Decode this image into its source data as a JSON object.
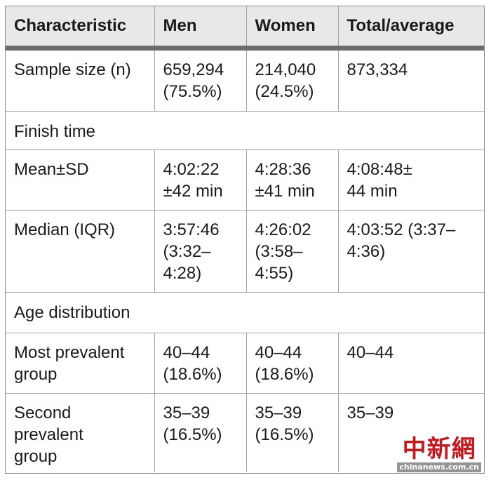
{
  "table": {
    "headers": [
      "Characteristic",
      "Men",
      "Women",
      "Total/average"
    ],
    "rows": {
      "sample_size": {
        "label": "Sample size (n)",
        "men": [
          "659,294",
          "(75.5%)"
        ],
        "women": [
          "214,040",
          "(24.5%)"
        ],
        "total": [
          "873,334"
        ]
      },
      "finish_time": {
        "label": "Finish time"
      },
      "mean_sd": {
        "label": "Mean±SD",
        "men": [
          "4:02:22",
          "±42 min"
        ],
        "women": [
          "4:28:36",
          "±41 min"
        ],
        "total": [
          "4:08:48±",
          "44 min"
        ]
      },
      "median_iqr": {
        "label": "Median (IQR)",
        "men": [
          "3:57:46",
          "(3:32–",
          "4:28)"
        ],
        "women": [
          "4:26:02",
          "(3:58–",
          "4:55)"
        ],
        "total": [
          "4:03:52 (3:37–",
          "4:36)"
        ]
      },
      "age_distribution": {
        "label": "Age distribution"
      },
      "most_prevalent": {
        "label": [
          "Most prevalent",
          "group"
        ],
        "men": [
          "40–44",
          "(18.6%)"
        ],
        "women": [
          "40–44",
          "(18.6%)"
        ],
        "total": [
          "40–44"
        ]
      },
      "second_prevalent": {
        "label": [
          "Second",
          "prevalent",
          "group"
        ],
        "men": [
          "35–39",
          "(16.5%)"
        ],
        "women": [
          "35–39",
          "(16.5%)"
        ],
        "total": [
          "35–39"
        ]
      }
    }
  },
  "watermark": {
    "logo": "中新網",
    "url": "chinanews.com.cn",
    "color": "#c8161d"
  },
  "colors": {
    "header_background": "#e8e8e8",
    "header_rule": "#6b6b6b",
    "grid_lines": "#a3a3a3"
  }
}
